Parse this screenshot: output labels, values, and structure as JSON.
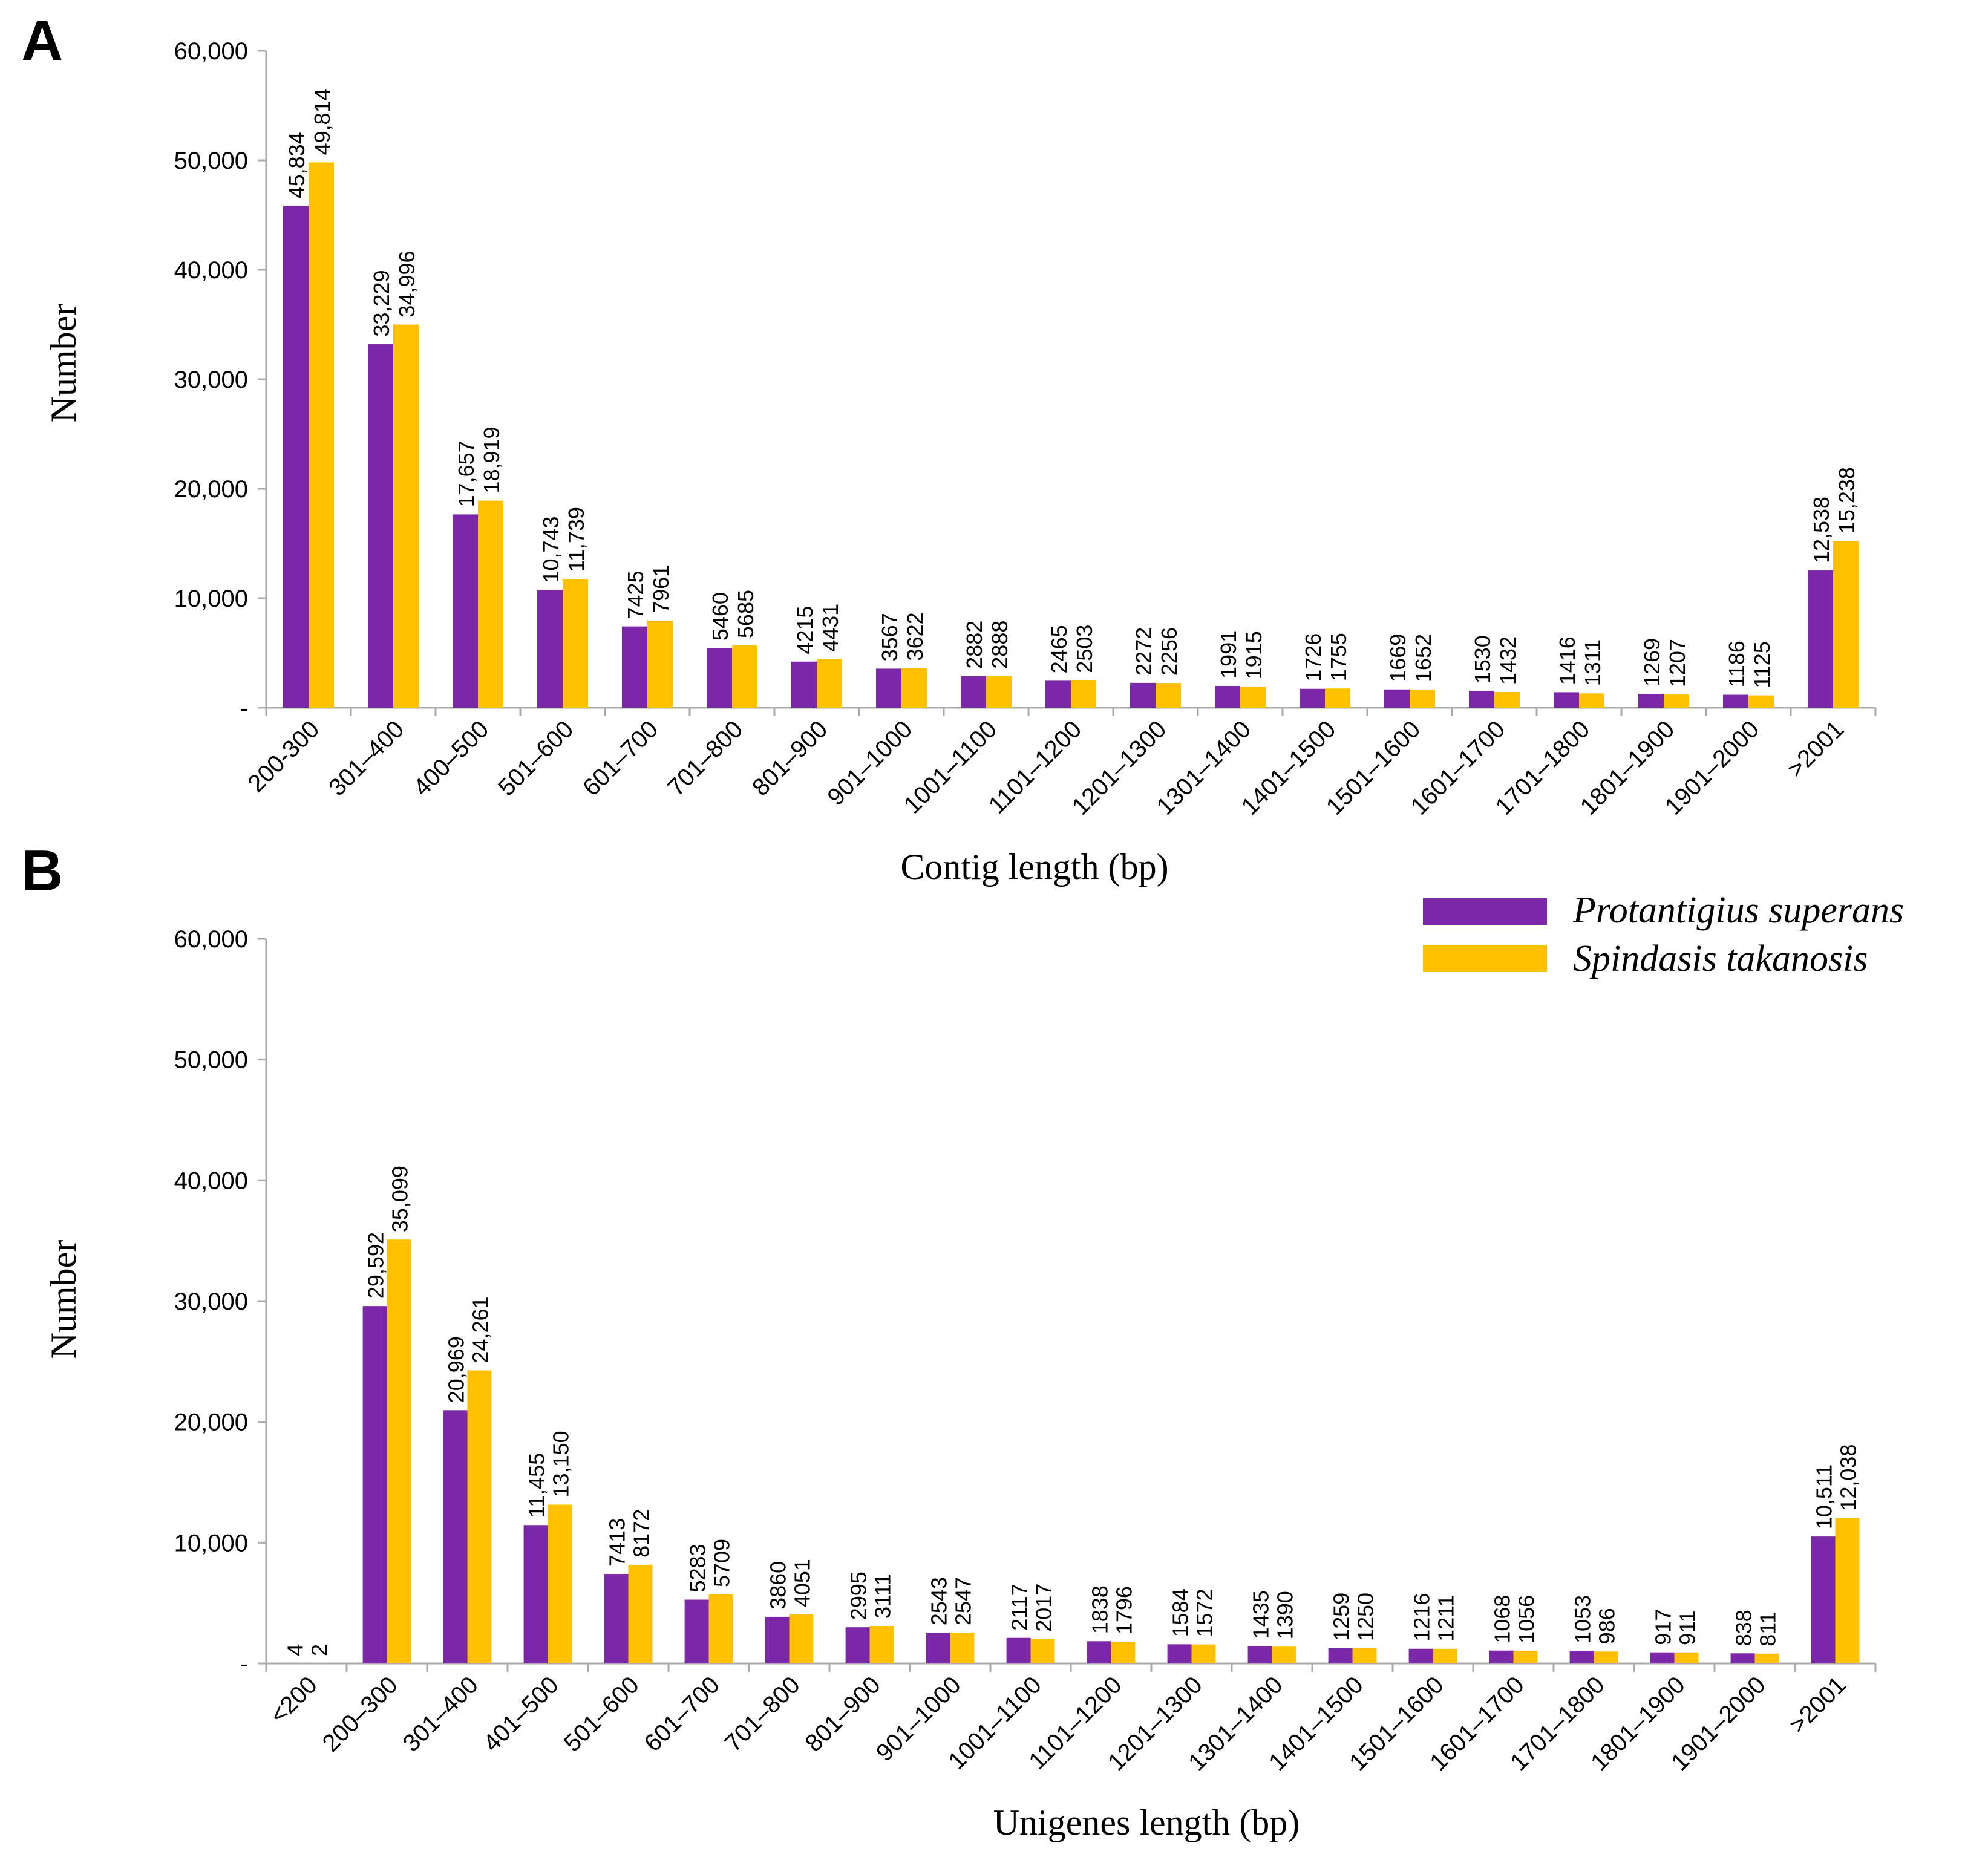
{
  "colors": {
    "series1": "#7b28a8",
    "series2": "#ffc000",
    "axis": "#aaaaaa",
    "text": "#000000"
  },
  "legend": {
    "items": [
      {
        "name": "Protantigius superans",
        "color": "#7b28a8"
      },
      {
        "name": "Spindasis takanosis",
        "color": "#ffc000"
      }
    ]
  },
  "chart_data": [
    {
      "panel": "A",
      "type": "bar",
      "xlabel": "Contig length (bp)",
      "ylabel": "Number",
      "ylim": [
        0,
        60000
      ],
      "yticks": [
        "-",
        "10,000",
        "20,000",
        "30,000",
        "40,000",
        "50,000",
        "60,000"
      ],
      "categories": [
        "200-300",
        "301–400",
        "400–500",
        "501–600",
        "601–700",
        "701–800",
        "801–900",
        "901–1000",
        "1001–1100",
        "1101–1200",
        "1201–1300",
        "1301–1400",
        "1401–1500",
        "1501–1600",
        "1601–1700",
        "1701–1800",
        "1801–1900",
        "1901–2000",
        ">2001"
      ],
      "series": [
        {
          "name": "Protantigius superans",
          "values": [
            45834,
            33229,
            17657,
            10743,
            7425,
            5460,
            4215,
            3567,
            2882,
            2465,
            2272,
            1991,
            1726,
            1669,
            1530,
            1416,
            1269,
            1186,
            12538
          ],
          "labels": [
            "45,834",
            "33,229",
            "17,657",
            "10,743",
            "7425",
            "5460",
            "4215",
            "3567",
            "2882",
            "2465",
            "2272",
            "1991",
            "1726",
            "1669",
            "1530",
            "1416",
            "1269",
            "1186",
            "12,538"
          ]
        },
        {
          "name": "Spindasis takanosis",
          "values": [
            49814,
            34996,
            18919,
            11739,
            7961,
            5685,
            4431,
            3622,
            2888,
            2503,
            2256,
            1915,
            1755,
            1652,
            1432,
            1311,
            1207,
            1125,
            15238
          ],
          "labels": [
            "49,814",
            "34,996",
            "18,919",
            "11,739",
            "7961",
            "5685",
            "4431",
            "3622",
            "2888",
            "2503",
            "2256",
            "1915",
            "1755",
            "1652",
            "1432",
            "1311",
            "1207",
            "1125",
            "15,238"
          ]
        }
      ]
    },
    {
      "panel": "B",
      "type": "bar",
      "xlabel": "Unigenes length (bp)",
      "ylabel": "Number",
      "ylim": [
        0,
        60000
      ],
      "yticks": [
        "-",
        "10,000",
        "20,000",
        "30,000",
        "40,000",
        "50,000",
        "60,000"
      ],
      "categories": [
        "<200",
        "200–300",
        "301–400",
        "401–500",
        "501–600",
        "601–700",
        "701–800",
        "801–900",
        "901–1000",
        "1001–1100",
        "1101–1200",
        "1201–1300",
        "1301–1400",
        "1401–1500",
        "1501–1600",
        "1601–1700",
        "1701–1800",
        "1801–1900",
        "1901–2000",
        ">2001"
      ],
      "series": [
        {
          "name": "Protantigius superans",
          "values": [
            4,
            29592,
            20969,
            11455,
            7413,
            5283,
            3860,
            2995,
            2543,
            2117,
            1838,
            1584,
            1435,
            1259,
            1216,
            1068,
            1053,
            917,
            838,
            10511
          ],
          "labels": [
            "4",
            "29,592",
            "20,969",
            "11,455",
            "7413",
            "5283",
            "3860",
            "2995",
            "2543",
            "2117",
            "1838",
            "1584",
            "1435",
            "1259",
            "1216",
            "1068",
            "1053",
            "917",
            "838",
            "10,511"
          ]
        },
        {
          "name": "Spindasis takanosis",
          "values": [
            2,
            35099,
            24261,
            13150,
            8172,
            5709,
            4051,
            3111,
            2547,
            2017,
            1796,
            1572,
            1390,
            1250,
            1211,
            1056,
            986,
            911,
            811,
            12038
          ],
          "labels": [
            "2",
            "35,099",
            "24,261",
            "13,150",
            "8172",
            "5709",
            "4051",
            "3111",
            "2547",
            "2017",
            "1796",
            "1572",
            "1390",
            "1250",
            "1211",
            "1056",
            "986",
            "911",
            "811",
            "12,038"
          ]
        }
      ]
    }
  ]
}
